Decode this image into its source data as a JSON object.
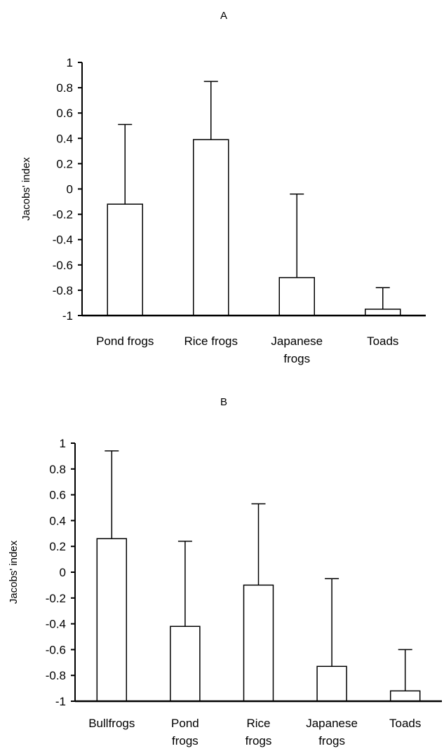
{
  "chart_data": [
    {
      "type": "bar",
      "title": "A",
      "ylabel": "Jacobs' index",
      "xlabel": "",
      "ylim": [
        -1,
        1
      ],
      "yticks": [
        "1",
        "0.8",
        "0.6",
        "0.4",
        "0.2",
        "0",
        "-0.2",
        "-0.4",
        "-0.6",
        "-0.8",
        "-1"
      ],
      "categories": [
        [
          "Pond frogs"
        ],
        [
          "Rice frogs"
        ],
        [
          "Japanese",
          "frogs"
        ],
        [
          "Toads"
        ]
      ],
      "values": [
        -0.12,
        0.39,
        -0.7,
        -0.95
      ],
      "error_upper": [
        0.63,
        0.46,
        0.66,
        0.17
      ],
      "grid": false,
      "colors": {
        "bar_fill": "#ffffff",
        "stroke": "#000000"
      }
    },
    {
      "type": "bar",
      "title": "B",
      "ylabel": "Jacobs' index",
      "xlabel": "",
      "ylim": [
        -1,
        1
      ],
      "yticks": [
        "1",
        "0.8",
        "0.6",
        "0.4",
        "0.2",
        "0",
        "-0.2",
        "-0.4",
        "-0.6",
        "-0.8",
        "-1"
      ],
      "categories": [
        [
          "Bullfrogs"
        ],
        [
          "Pond",
          "frogs"
        ],
        [
          "Rice",
          "frogs"
        ],
        [
          "Japanese",
          "frogs"
        ],
        [
          "Toads"
        ]
      ],
      "values": [
        0.26,
        -0.42,
        -0.1,
        -0.73,
        -0.92
      ],
      "error_upper": [
        0.68,
        0.66,
        0.63,
        0.68,
        0.32
      ],
      "grid": false,
      "colors": {
        "bar_fill": "#ffffff",
        "stroke": "#000000"
      }
    }
  ]
}
